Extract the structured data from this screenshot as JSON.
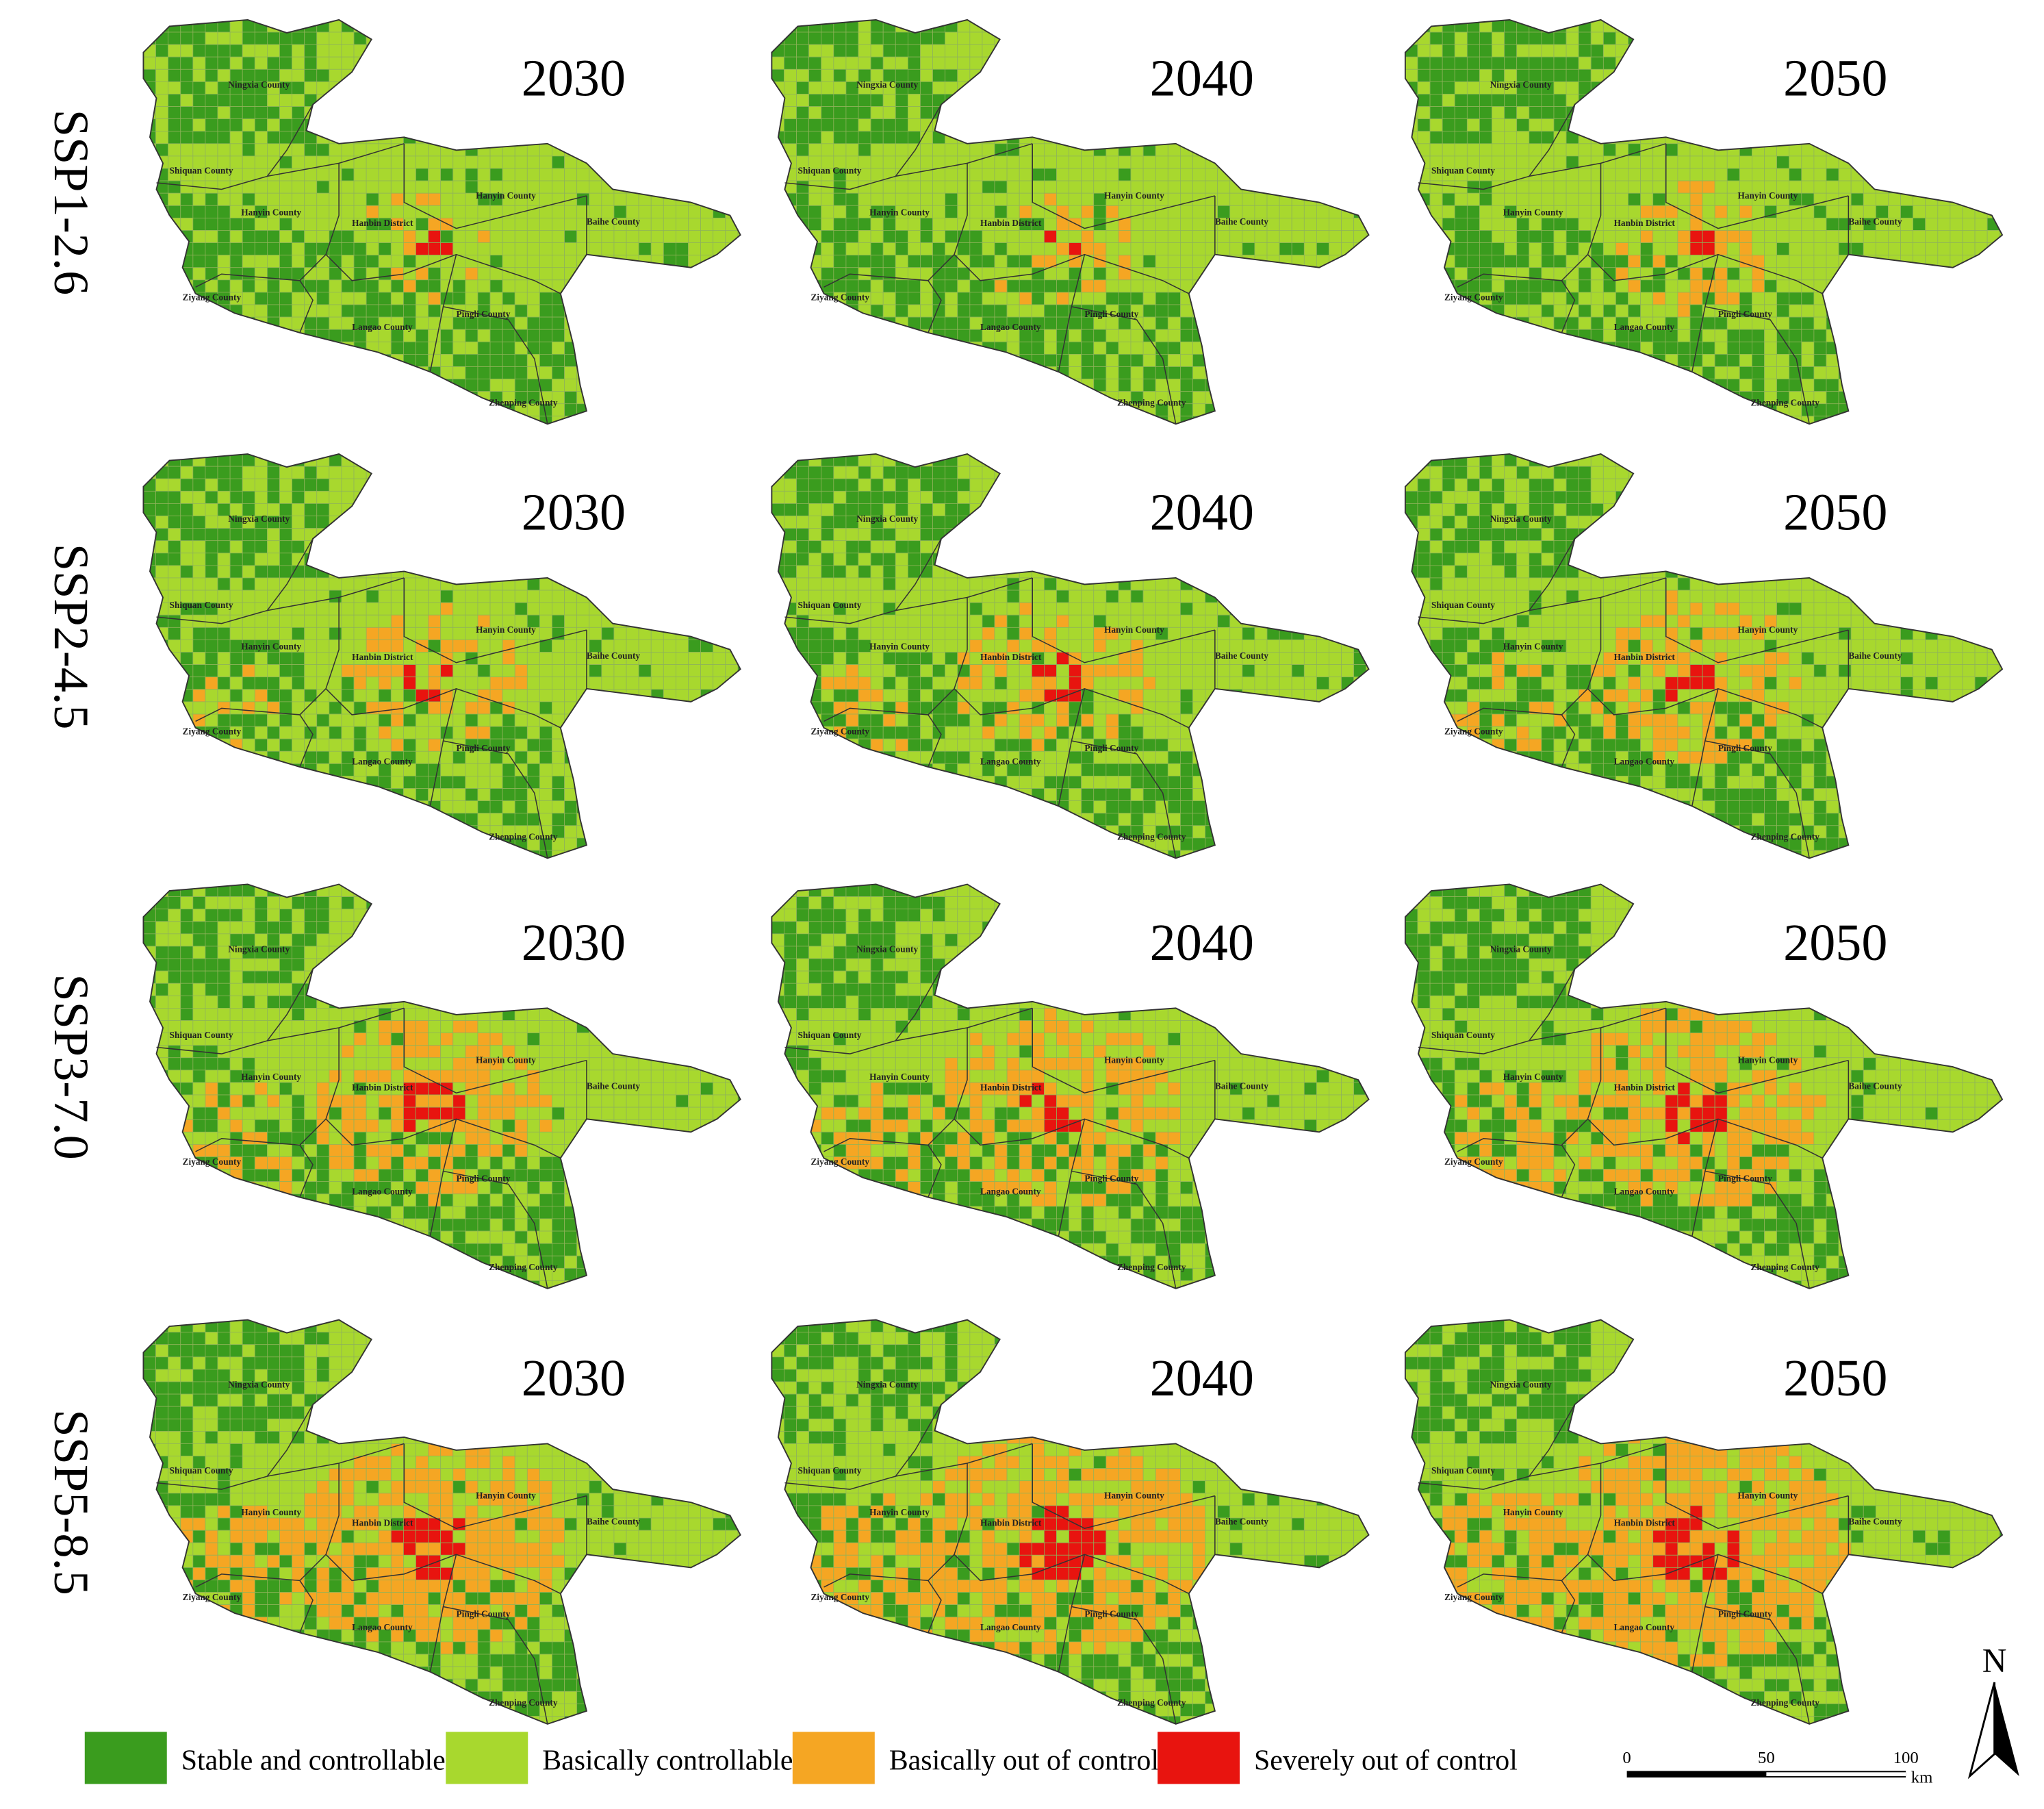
{
  "scenarios": [
    "SSP1-2.6",
    "SSP2-4.5",
    "SSP3-7.0",
    "SSP5-8.5"
  ],
  "years": [
    "2030",
    "2040",
    "2050"
  ],
  "county_labels": [
    "Ningxia County",
    "Shiquan County",
    "Hanyin County",
    "Hanbin District",
    "Hanyin County",
    "Baihe County",
    "Ziyang County",
    "Langao County",
    "Pingli County",
    "Zhenping County"
  ],
  "legend": [
    {
      "label": "Stable and controllable",
      "color": "#3a9c1e"
    },
    {
      "label": "Basically controllable",
      "color": "#a8d82e"
    },
    {
      "label": "Basically out of control",
      "color": "#f5a623"
    },
    {
      "label": "Severely out of control",
      "color": "#e8140f"
    }
  ],
  "scale_bar": {
    "ticks": [
      0,
      50,
      100
    ],
    "unit": "km"
  },
  "north": "N"
}
